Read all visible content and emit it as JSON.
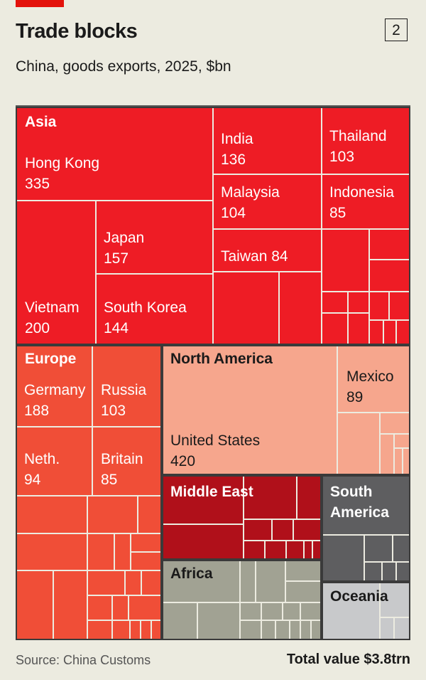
{
  "header": {
    "title": "Trade blocks",
    "chart_number": "2",
    "subtitle": "China, goods exports, 2025, $bn"
  },
  "footer": {
    "source": "Source: China Customs",
    "total": "Total value $3.8trn"
  },
  "chart_data": {
    "type": "treemap",
    "title": "Trade blocks",
    "subtitle": "China, goods exports, 2025, $bn",
    "units": "$bn",
    "total": "$3.8trn",
    "regions": [
      {
        "name": "Asia",
        "color": "#ee1c25",
        "text_color": "#ffffff",
        "countries": [
          {
            "name": "Hong Kong",
            "value": 335
          },
          {
            "name": "Vietnam",
            "value": 200
          },
          {
            "name": "Japan",
            "value": 157
          },
          {
            "name": "South Korea",
            "value": 144
          },
          {
            "name": "India",
            "value": 136
          },
          {
            "name": "Malaysia",
            "value": 104
          },
          {
            "name": "Taiwan",
            "value": 84
          },
          {
            "name": "Thailand",
            "value": 103
          },
          {
            "name": "Indonesia",
            "value": 85
          }
        ]
      },
      {
        "name": "Europe",
        "color": "#f04e37",
        "text_color": "#ffffff",
        "countries": [
          {
            "name": "Germany",
            "value": 188
          },
          {
            "name": "Russia",
            "value": 103
          },
          {
            "name": "Neth.",
            "value": 94
          },
          {
            "name": "Britain",
            "value": 85
          }
        ]
      },
      {
        "name": "North America",
        "color": "#f6a68d",
        "text_color": "#1a1a1a",
        "countries": [
          {
            "name": "United States",
            "value": 420
          },
          {
            "name": "Mexico",
            "value": 89
          }
        ]
      },
      {
        "name": "Middle East",
        "color": "#b0101a",
        "text_color": "#ffffff",
        "countries": []
      },
      {
        "name": "South America",
        "color": "#5e5e60",
        "text_color": "#ffffff",
        "countries": []
      },
      {
        "name": "Africa",
        "color": "#a1a293",
        "text_color": "#1a1a1a",
        "countries": []
      },
      {
        "name": "Oceania",
        "color": "#c8c9cb",
        "text_color": "#1a1a1a",
        "countries": []
      }
    ]
  }
}
